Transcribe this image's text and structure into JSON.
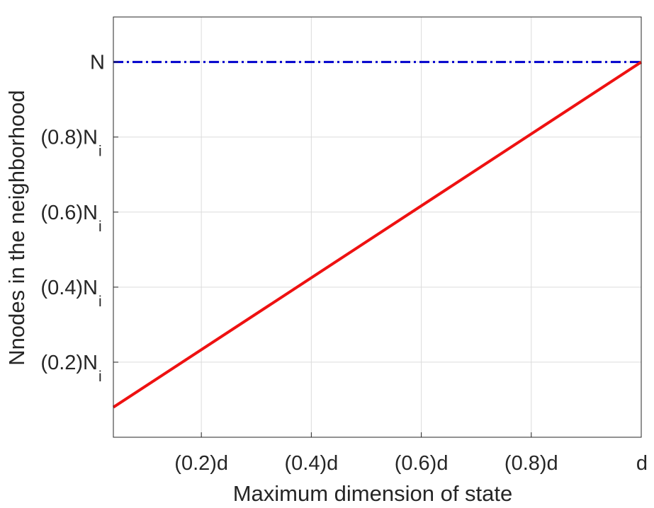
{
  "chart_data": {
    "type": "line",
    "xlabel": "Maximum dimension of state",
    "ylabel": "Nnodes in the neighborhood",
    "xlim": [
      0.04,
      1.0
    ],
    "ylim": [
      0.0,
      1.12
    ],
    "grid": true,
    "x_ticks": [
      {
        "value": 0.2,
        "label": "(0.2)d"
      },
      {
        "value": 0.4,
        "label": "(0.4)d"
      },
      {
        "value": 0.6,
        "label": "(0.6)d"
      },
      {
        "value": 0.8,
        "label": "(0.8)d"
      },
      {
        "value": 1.0,
        "label": "d"
      }
    ],
    "y_ticks": [
      {
        "value": 0.2,
        "label": "(0.2)N",
        "sub": "i"
      },
      {
        "value": 0.4,
        "label": "(0.4)N",
        "sub": "i"
      },
      {
        "value": 0.6,
        "label": "(0.6)N",
        "sub": "i"
      },
      {
        "value": 0.8,
        "label": "(0.8)N",
        "sub": "i"
      },
      {
        "value": 1.0,
        "label": "N",
        "sub": ""
      }
    ],
    "series": [
      {
        "style": "dash-dot",
        "color": "#0000cc",
        "x": [
          0.04,
          1.0
        ],
        "y": [
          1.0,
          1.0
        ]
      },
      {
        "style": "solid",
        "color": "#ee1111",
        "x": [
          0.04,
          1.0
        ],
        "y": [
          0.08,
          1.0
        ]
      }
    ]
  }
}
